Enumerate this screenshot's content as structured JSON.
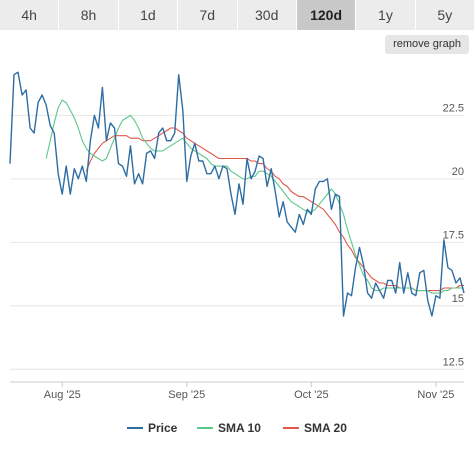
{
  "tabs": [
    {
      "label": "4h"
    },
    {
      "label": "8h"
    },
    {
      "label": "1d"
    },
    {
      "label": "7d"
    },
    {
      "label": "30d"
    },
    {
      "label": "120d",
      "active": true
    },
    {
      "label": "1y"
    },
    {
      "label": "5y"
    }
  ],
  "remove_button": "remove graph",
  "chart_data": {
    "type": "line",
    "xlabel": "",
    "ylabel": "",
    "ylim": [
      12.0,
      24.6
    ],
    "y_ticks": [
      12.5,
      15,
      17.5,
      20,
      22.5
    ],
    "x_ticks": [
      "Aug '25",
      "Sep '25",
      "Oct '25",
      "Nov '25"
    ],
    "x_tick_index": [
      13,
      44,
      75,
      106
    ],
    "grid": true,
    "legend": "bottom",
    "series": [
      {
        "name": "Price",
        "color": "#2e6da4",
        "values": [
          20.6,
          24.1,
          24.2,
          23.3,
          23.5,
          22.0,
          21.8,
          23.0,
          23.3,
          22.9,
          22.1,
          21.8,
          20.2,
          19.4,
          20.5,
          19.4,
          20.4,
          20.0,
          20.5,
          19.9,
          21.5,
          22.5,
          22.0,
          23.6,
          21.5,
          22.2,
          22.0,
          20.6,
          20.5,
          20.1,
          21.3,
          19.8,
          20.2,
          19.8,
          21.0,
          21.1,
          20.8,
          21.8,
          22.0,
          21.5,
          21.5,
          21.8,
          24.1,
          22.7,
          19.9,
          20.9,
          21.4,
          20.7,
          20.7,
          20.2,
          20.2,
          20.5,
          20.0,
          20.5,
          20.4,
          19.4,
          18.6,
          19.8,
          19.0,
          20.8,
          20.0,
          20.3,
          20.9,
          20.8,
          19.7,
          20.4,
          19.5,
          18.5,
          19.1,
          18.3,
          18.1,
          17.9,
          18.6,
          18.2,
          18.8,
          18.6,
          19.6,
          19.9,
          19.9,
          20.0,
          18.8,
          19.4,
          19.3,
          14.6,
          15.5,
          15.4,
          16.5,
          17.3,
          16.6,
          15.5,
          15.3,
          15.9,
          15.6,
          15.3,
          16.0,
          16.0,
          15.5,
          16.7,
          15.5,
          16.3,
          15.5,
          15.4,
          16.3,
          16.4,
          15.2,
          14.6,
          15.4,
          15.3,
          17.6,
          16.5,
          16.4,
          15.9,
          16.1,
          15.5
        ]
      },
      {
        "name": "SMA 10",
        "color": "#5cc78a",
        "values": [
          null,
          null,
          null,
          null,
          null,
          null,
          null,
          null,
          null,
          20.8,
          21.5,
          22.2,
          22.8,
          23.1,
          23.0,
          22.7,
          22.4,
          22.0,
          21.5,
          21.2,
          21.0,
          20.9,
          20.8,
          20.7,
          20.8,
          21.2,
          21.6,
          22.0,
          22.3,
          22.4,
          22.5,
          22.3,
          22.0,
          21.6,
          21.4,
          21.2,
          21.1,
          21.1,
          21.1,
          21.2,
          21.3,
          21.4,
          21.5,
          21.6,
          21.4,
          21.2,
          21.1,
          21.0,
          20.9,
          20.8,
          20.6,
          20.5,
          20.5,
          20.5,
          20.5,
          20.3,
          20.2,
          20.1,
          20.0,
          20.0,
          20.1,
          20.1,
          20.3,
          20.3,
          20.2,
          20.1,
          19.9,
          19.7,
          19.5,
          19.3,
          19.1,
          19.0,
          18.9,
          18.8,
          18.7,
          18.7,
          18.8,
          19.0,
          19.2,
          19.4,
          19.6,
          19.4,
          19.0,
          18.6,
          18.0,
          17.5,
          17.0,
          16.6,
          16.2,
          16.0,
          15.7,
          15.6,
          15.6,
          15.7,
          15.7,
          15.7,
          15.7,
          15.7,
          15.7,
          15.7,
          15.7,
          15.6,
          15.6,
          15.6,
          15.6,
          15.5,
          15.5,
          15.5,
          15.6,
          15.6,
          15.7,
          15.7,
          15.7,
          15.7
        ]
      },
      {
        "name": "SMA 20",
        "color": "#e0584a",
        "values": [
          null,
          null,
          null,
          null,
          null,
          null,
          null,
          null,
          null,
          null,
          null,
          null,
          null,
          null,
          null,
          null,
          null,
          null,
          null,
          20.3,
          20.7,
          21.0,
          21.2,
          21.4,
          21.5,
          21.6,
          21.7,
          21.7,
          21.7,
          21.7,
          21.6,
          21.6,
          21.6,
          21.5,
          21.5,
          21.5,
          21.6,
          21.7,
          21.8,
          21.9,
          22.0,
          22.0,
          21.9,
          21.8,
          21.6,
          21.5,
          21.4,
          21.3,
          21.2,
          21.1,
          21.0,
          20.9,
          20.8,
          20.8,
          20.8,
          20.8,
          20.8,
          20.8,
          20.8,
          20.8,
          20.7,
          20.7,
          20.6,
          20.6,
          20.4,
          20.3,
          20.1,
          20.0,
          19.8,
          19.7,
          19.5,
          19.4,
          19.3,
          19.3,
          19.2,
          19.1,
          19.0,
          18.9,
          18.8,
          18.6,
          18.4,
          18.2,
          17.9,
          17.7,
          17.4,
          17.2,
          16.9,
          16.7,
          16.5,
          16.3,
          16.1,
          16.0,
          15.9,
          15.9,
          15.8,
          15.8,
          15.8,
          15.7,
          15.7,
          15.7,
          15.7,
          15.6,
          15.6,
          15.6,
          15.6,
          15.6,
          15.6,
          15.6,
          15.7,
          15.7,
          15.7,
          15.7,
          15.8,
          15.8
        ]
      }
    ]
  }
}
